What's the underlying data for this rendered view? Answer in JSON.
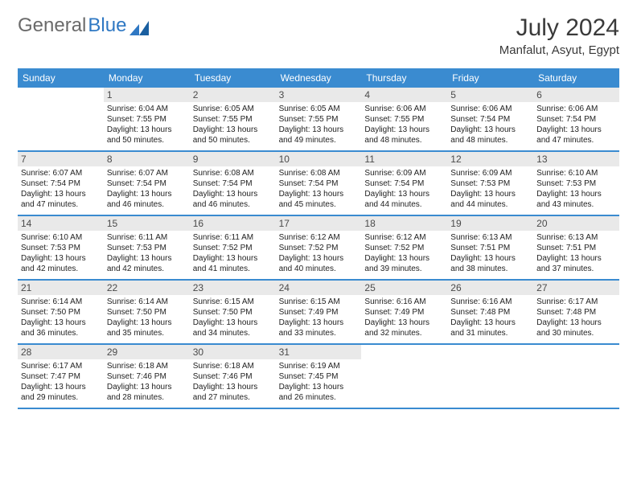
{
  "logo": {
    "text1": "General",
    "text2": "Blue"
  },
  "title": "July 2024",
  "location": "Manfalut, Asyut, Egypt",
  "colors": {
    "header_blue": "#3a8bd0",
    "rule_blue": "#3a8bd0",
    "daynum_bg": "#e9e9e9",
    "logo_gray": "#6a6a6a",
    "logo_blue": "#2f78c3"
  },
  "dow": [
    "Sunday",
    "Monday",
    "Tuesday",
    "Wednesday",
    "Thursday",
    "Friday",
    "Saturday"
  ],
  "weeks": [
    [
      null,
      {
        "n": "1",
        "sr": "Sunrise: 6:04 AM",
        "ss": "Sunset: 7:55 PM",
        "d1": "Daylight: 13 hours",
        "d2": "and 50 minutes."
      },
      {
        "n": "2",
        "sr": "Sunrise: 6:05 AM",
        "ss": "Sunset: 7:55 PM",
        "d1": "Daylight: 13 hours",
        "d2": "and 50 minutes."
      },
      {
        "n": "3",
        "sr": "Sunrise: 6:05 AM",
        "ss": "Sunset: 7:55 PM",
        "d1": "Daylight: 13 hours",
        "d2": "and 49 minutes."
      },
      {
        "n": "4",
        "sr": "Sunrise: 6:06 AM",
        "ss": "Sunset: 7:55 PM",
        "d1": "Daylight: 13 hours",
        "d2": "and 48 minutes."
      },
      {
        "n": "5",
        "sr": "Sunrise: 6:06 AM",
        "ss": "Sunset: 7:54 PM",
        "d1": "Daylight: 13 hours",
        "d2": "and 48 minutes."
      },
      {
        "n": "6",
        "sr": "Sunrise: 6:06 AM",
        "ss": "Sunset: 7:54 PM",
        "d1": "Daylight: 13 hours",
        "d2": "and 47 minutes."
      }
    ],
    [
      {
        "n": "7",
        "sr": "Sunrise: 6:07 AM",
        "ss": "Sunset: 7:54 PM",
        "d1": "Daylight: 13 hours",
        "d2": "and 47 minutes."
      },
      {
        "n": "8",
        "sr": "Sunrise: 6:07 AM",
        "ss": "Sunset: 7:54 PM",
        "d1": "Daylight: 13 hours",
        "d2": "and 46 minutes."
      },
      {
        "n": "9",
        "sr": "Sunrise: 6:08 AM",
        "ss": "Sunset: 7:54 PM",
        "d1": "Daylight: 13 hours",
        "d2": "and 46 minutes."
      },
      {
        "n": "10",
        "sr": "Sunrise: 6:08 AM",
        "ss": "Sunset: 7:54 PM",
        "d1": "Daylight: 13 hours",
        "d2": "and 45 minutes."
      },
      {
        "n": "11",
        "sr": "Sunrise: 6:09 AM",
        "ss": "Sunset: 7:54 PM",
        "d1": "Daylight: 13 hours",
        "d2": "and 44 minutes."
      },
      {
        "n": "12",
        "sr": "Sunrise: 6:09 AM",
        "ss": "Sunset: 7:53 PM",
        "d1": "Daylight: 13 hours",
        "d2": "and 44 minutes."
      },
      {
        "n": "13",
        "sr": "Sunrise: 6:10 AM",
        "ss": "Sunset: 7:53 PM",
        "d1": "Daylight: 13 hours",
        "d2": "and 43 minutes."
      }
    ],
    [
      {
        "n": "14",
        "sr": "Sunrise: 6:10 AM",
        "ss": "Sunset: 7:53 PM",
        "d1": "Daylight: 13 hours",
        "d2": "and 42 minutes."
      },
      {
        "n": "15",
        "sr": "Sunrise: 6:11 AM",
        "ss": "Sunset: 7:53 PM",
        "d1": "Daylight: 13 hours",
        "d2": "and 42 minutes."
      },
      {
        "n": "16",
        "sr": "Sunrise: 6:11 AM",
        "ss": "Sunset: 7:52 PM",
        "d1": "Daylight: 13 hours",
        "d2": "and 41 minutes."
      },
      {
        "n": "17",
        "sr": "Sunrise: 6:12 AM",
        "ss": "Sunset: 7:52 PM",
        "d1": "Daylight: 13 hours",
        "d2": "and 40 minutes."
      },
      {
        "n": "18",
        "sr": "Sunrise: 6:12 AM",
        "ss": "Sunset: 7:52 PM",
        "d1": "Daylight: 13 hours",
        "d2": "and 39 minutes."
      },
      {
        "n": "19",
        "sr": "Sunrise: 6:13 AM",
        "ss": "Sunset: 7:51 PM",
        "d1": "Daylight: 13 hours",
        "d2": "and 38 minutes."
      },
      {
        "n": "20",
        "sr": "Sunrise: 6:13 AM",
        "ss": "Sunset: 7:51 PM",
        "d1": "Daylight: 13 hours",
        "d2": "and 37 minutes."
      }
    ],
    [
      {
        "n": "21",
        "sr": "Sunrise: 6:14 AM",
        "ss": "Sunset: 7:50 PM",
        "d1": "Daylight: 13 hours",
        "d2": "and 36 minutes."
      },
      {
        "n": "22",
        "sr": "Sunrise: 6:14 AM",
        "ss": "Sunset: 7:50 PM",
        "d1": "Daylight: 13 hours",
        "d2": "and 35 minutes."
      },
      {
        "n": "23",
        "sr": "Sunrise: 6:15 AM",
        "ss": "Sunset: 7:50 PM",
        "d1": "Daylight: 13 hours",
        "d2": "and 34 minutes."
      },
      {
        "n": "24",
        "sr": "Sunrise: 6:15 AM",
        "ss": "Sunset: 7:49 PM",
        "d1": "Daylight: 13 hours",
        "d2": "and 33 minutes."
      },
      {
        "n": "25",
        "sr": "Sunrise: 6:16 AM",
        "ss": "Sunset: 7:49 PM",
        "d1": "Daylight: 13 hours",
        "d2": "and 32 minutes."
      },
      {
        "n": "26",
        "sr": "Sunrise: 6:16 AM",
        "ss": "Sunset: 7:48 PM",
        "d1": "Daylight: 13 hours",
        "d2": "and 31 minutes."
      },
      {
        "n": "27",
        "sr": "Sunrise: 6:17 AM",
        "ss": "Sunset: 7:48 PM",
        "d1": "Daylight: 13 hours",
        "d2": "and 30 minutes."
      }
    ],
    [
      {
        "n": "28",
        "sr": "Sunrise: 6:17 AM",
        "ss": "Sunset: 7:47 PM",
        "d1": "Daylight: 13 hours",
        "d2": "and 29 minutes."
      },
      {
        "n": "29",
        "sr": "Sunrise: 6:18 AM",
        "ss": "Sunset: 7:46 PM",
        "d1": "Daylight: 13 hours",
        "d2": "and 28 minutes."
      },
      {
        "n": "30",
        "sr": "Sunrise: 6:18 AM",
        "ss": "Sunset: 7:46 PM",
        "d1": "Daylight: 13 hours",
        "d2": "and 27 minutes."
      },
      {
        "n": "31",
        "sr": "Sunrise: 6:19 AM",
        "ss": "Sunset: 7:45 PM",
        "d1": "Daylight: 13 hours",
        "d2": "and 26 minutes."
      },
      null,
      null,
      null
    ]
  ]
}
